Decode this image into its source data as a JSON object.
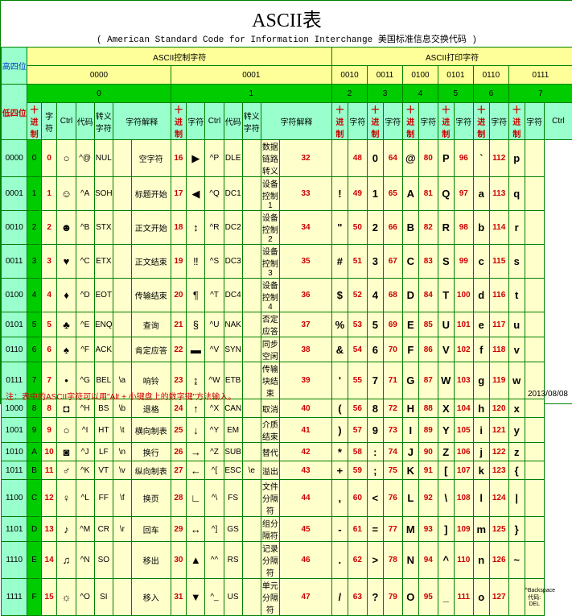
{
  "title": "ASCII表",
  "subtitle": "( American Standard Code for Information Interchange  美国标准信息交换代码 )",
  "hdr": {
    "high": "高四位",
    "low": "低四位",
    "ctrl_group": "ASCII控制字符",
    "print_group": "ASCII打印字符",
    "dec": "十进制",
    "glyph": "字符",
    "ctrl": "Ctrl",
    "code": "代码",
    "esc": "转义字符",
    "desc": "字符解释"
  },
  "cols_bin": [
    "0000",
    "0001",
    "0010",
    "0011",
    "0100",
    "0101",
    "0110",
    "0111"
  ],
  "cols_dec": [
    "0",
    "1",
    "2",
    "3",
    "4",
    "5",
    "6",
    "7"
  ],
  "rows": [
    {
      "b": "0000",
      "d": "0",
      "c0": [
        "0",
        "○",
        "^@",
        "NUL",
        "",
        "空字符"
      ],
      "c1": [
        "16",
        "▶",
        "^P",
        "DLE",
        "",
        "数据链路转义"
      ],
      "c2": [
        "32",
        ""
      ],
      "c3": [
        "48",
        "0"
      ],
      "c4": [
        "64",
        "@"
      ],
      "c5": [
        "80",
        "P"
      ],
      "c6": [
        "96",
        "`"
      ],
      "c7": [
        "112",
        "p"
      ],
      "ctrl": ""
    },
    {
      "b": "0001",
      "d": "1",
      "c0": [
        "1",
        "☺",
        "^A",
        "SOH",
        "",
        "标题开始"
      ],
      "c1": [
        "17",
        "◀",
        "^Q",
        "DC1",
        "",
        "设备控制 1"
      ],
      "c2": [
        "33",
        "!"
      ],
      "c3": [
        "49",
        "1"
      ],
      "c4": [
        "65",
        "A"
      ],
      "c5": [
        "81",
        "Q"
      ],
      "c6": [
        "97",
        "a"
      ],
      "c7": [
        "113",
        "q"
      ],
      "ctrl": ""
    },
    {
      "b": "0010",
      "d": "2",
      "c0": [
        "2",
        "☻",
        "^B",
        "STX",
        "",
        "正文开始"
      ],
      "c1": [
        "18",
        "↕",
        "^R",
        "DC2",
        "",
        "设备控制 2"
      ],
      "c2": [
        "34",
        "\""
      ],
      "c3": [
        "50",
        "2"
      ],
      "c4": [
        "66",
        "B"
      ],
      "c5": [
        "82",
        "R"
      ],
      "c6": [
        "98",
        "b"
      ],
      "c7": [
        "114",
        "r"
      ],
      "ctrl": ""
    },
    {
      "b": "0011",
      "d": "3",
      "c0": [
        "3",
        "♥",
        "^C",
        "ETX",
        "",
        "正文结束"
      ],
      "c1": [
        "19",
        "‼",
        "^S",
        "DC3",
        "",
        "设备控制 3"
      ],
      "c2": [
        "35",
        "#"
      ],
      "c3": [
        "51",
        "3"
      ],
      "c4": [
        "67",
        "C"
      ],
      "c5": [
        "83",
        "S"
      ],
      "c6": [
        "99",
        "c"
      ],
      "c7": [
        "115",
        "s"
      ],
      "ctrl": ""
    },
    {
      "b": "0100",
      "d": "4",
      "c0": [
        "4",
        "♦",
        "^D",
        "EOT",
        "",
        "传输结束"
      ],
      "c1": [
        "20",
        "¶",
        "^T",
        "DC4",
        "",
        "设备控制 4"
      ],
      "c2": [
        "36",
        "$"
      ],
      "c3": [
        "52",
        "4"
      ],
      "c4": [
        "68",
        "D"
      ],
      "c5": [
        "84",
        "T"
      ],
      "c6": [
        "100",
        "d"
      ],
      "c7": [
        "116",
        "t"
      ],
      "ctrl": ""
    },
    {
      "b": "0101",
      "d": "5",
      "c0": [
        "5",
        "♣",
        "^E",
        "ENQ",
        "",
        "查询"
      ],
      "c1": [
        "21",
        "§",
        "^U",
        "NAK",
        "",
        "否定应答"
      ],
      "c2": [
        "37",
        "%"
      ],
      "c3": [
        "53",
        "5"
      ],
      "c4": [
        "69",
        "E"
      ],
      "c5": [
        "85",
        "U"
      ],
      "c6": [
        "101",
        "e"
      ],
      "c7": [
        "117",
        "u"
      ],
      "ctrl": ""
    },
    {
      "b": "0110",
      "d": "6",
      "c0": [
        "6",
        "♠",
        "^F",
        "ACK",
        "",
        "肯定应答"
      ],
      "c1": [
        "22",
        "▬",
        "^V",
        "SYN",
        "",
        "同步空闲"
      ],
      "c2": [
        "38",
        "&"
      ],
      "c3": [
        "54",
        "6"
      ],
      "c4": [
        "70",
        "F"
      ],
      "c5": [
        "86",
        "V"
      ],
      "c6": [
        "102",
        "f"
      ],
      "c7": [
        "118",
        "v"
      ],
      "ctrl": ""
    },
    {
      "b": "0111",
      "d": "7",
      "c0": [
        "7",
        "•",
        "^G",
        "BEL",
        "\\a",
        "响铃"
      ],
      "c1": [
        "23",
        "↨",
        "^W",
        "ETB",
        "",
        "传输块结束"
      ],
      "c2": [
        "39",
        "'"
      ],
      "c3": [
        "55",
        "7"
      ],
      "c4": [
        "71",
        "G"
      ],
      "c5": [
        "87",
        "W"
      ],
      "c6": [
        "103",
        "g"
      ],
      "c7": [
        "119",
        "w"
      ],
      "ctrl": ""
    },
    {
      "b": "1000",
      "d": "8",
      "c0": [
        "8",
        "◘",
        "^H",
        "BS",
        "\\b",
        "退格"
      ],
      "c1": [
        "24",
        "↑",
        "^X",
        "CAN",
        "",
        "取消"
      ],
      "c2": [
        "40",
        "("
      ],
      "c3": [
        "56",
        "8"
      ],
      "c4": [
        "72",
        "H"
      ],
      "c5": [
        "88",
        "X"
      ],
      "c6": [
        "104",
        "h"
      ],
      "c7": [
        "120",
        "x"
      ],
      "ctrl": ""
    },
    {
      "b": "1001",
      "d": "9",
      "c0": [
        "9",
        "○",
        "^I",
        "HT",
        "\\t",
        "横向制表"
      ],
      "c1": [
        "25",
        "↓",
        "^Y",
        "EM",
        "",
        "介质结束"
      ],
      "c2": [
        "41",
        ")"
      ],
      "c3": [
        "57",
        "9"
      ],
      "c4": [
        "73",
        "I"
      ],
      "c5": [
        "89",
        "Y"
      ],
      "c6": [
        "105",
        "i"
      ],
      "c7": [
        "121",
        "y"
      ],
      "ctrl": ""
    },
    {
      "b": "1010",
      "d": "A",
      "c0": [
        "10",
        "◙",
        "^J",
        "LF",
        "\\n",
        "换行"
      ],
      "c1": [
        "26",
        "→",
        "^Z",
        "SUB",
        "",
        "替代"
      ],
      "c2": [
        "42",
        "*"
      ],
      "c3": [
        "58",
        ":"
      ],
      "c4": [
        "74",
        "J"
      ],
      "c5": [
        "90",
        "Z"
      ],
      "c6": [
        "106",
        "j"
      ],
      "c7": [
        "122",
        "z"
      ],
      "ctrl": ""
    },
    {
      "b": "1011",
      "d": "B",
      "c0": [
        "11",
        "♂",
        "^K",
        "VT",
        "\\v",
        "纵向制表"
      ],
      "c1": [
        "27",
        "←",
        "^[",
        "ESC",
        "\\e",
        "溢出"
      ],
      "c2": [
        "43",
        "+"
      ],
      "c3": [
        "59",
        ";"
      ],
      "c4": [
        "75",
        "K"
      ],
      "c5": [
        "91",
        "["
      ],
      "c6": [
        "107",
        "k"
      ],
      "c7": [
        "123",
        "{"
      ],
      "ctrl": ""
    },
    {
      "b": "1100",
      "d": "C",
      "c0": [
        "12",
        "♀",
        "^L",
        "FF",
        "\\f",
        "换页"
      ],
      "c1": [
        "28",
        "∟",
        "^\\",
        "FS",
        "",
        "文件分隔符"
      ],
      "c2": [
        "44",
        ","
      ],
      "c3": [
        "60",
        "<"
      ],
      "c4": [
        "76",
        "L"
      ],
      "c5": [
        "92",
        "\\"
      ],
      "c6": [
        "108",
        "l"
      ],
      "c7": [
        "124",
        "|"
      ],
      "ctrl": ""
    },
    {
      "b": "1101",
      "d": "D",
      "c0": [
        "13",
        "♪",
        "^M",
        "CR",
        "\\r",
        "回车"
      ],
      "c1": [
        "29",
        "↔",
        "^]",
        "GS",
        "",
        "组分隔符"
      ],
      "c2": [
        "45",
        "-"
      ],
      "c3": [
        "61",
        "="
      ],
      "c4": [
        "77",
        "M"
      ],
      "c5": [
        "93",
        "]"
      ],
      "c6": [
        "109",
        "m"
      ],
      "c7": [
        "125",
        "}"
      ],
      "ctrl": ""
    },
    {
      "b": "1110",
      "d": "E",
      "c0": [
        "14",
        "♫",
        "^N",
        "SO",
        "",
        "移出"
      ],
      "c1": [
        "30",
        "▲",
        "^^",
        "RS",
        "",
        "记录分隔符"
      ],
      "c2": [
        "46",
        "."
      ],
      "c3": [
        "62",
        ">"
      ],
      "c4": [
        "78",
        "N"
      ],
      "c5": [
        "94",
        "^"
      ],
      "c6": [
        "110",
        "n"
      ],
      "c7": [
        "126",
        "~"
      ],
      "ctrl": ""
    },
    {
      "b": "1111",
      "d": "F",
      "c0": [
        "15",
        "☼",
        "^O",
        "SI",
        "",
        "移入"
      ],
      "c1": [
        "31",
        "▼",
        "^_",
        "US",
        "",
        "单元分隔符"
      ],
      "c2": [
        "47",
        "/"
      ],
      "c3": [
        "63",
        "?"
      ],
      "c4": [
        "79",
        "O"
      ],
      "c5": [
        "95",
        "_"
      ],
      "c6": [
        "111",
        "o"
      ],
      "c7": [
        "127",
        ""
      ],
      "ctrl": "^Backspace\n代码: DEL"
    }
  ],
  "footnote": "注：表中的ASCII字符可以用\"Alt + 小键盘上的数字键\"方法输入。",
  "date": "2013/08/08"
}
